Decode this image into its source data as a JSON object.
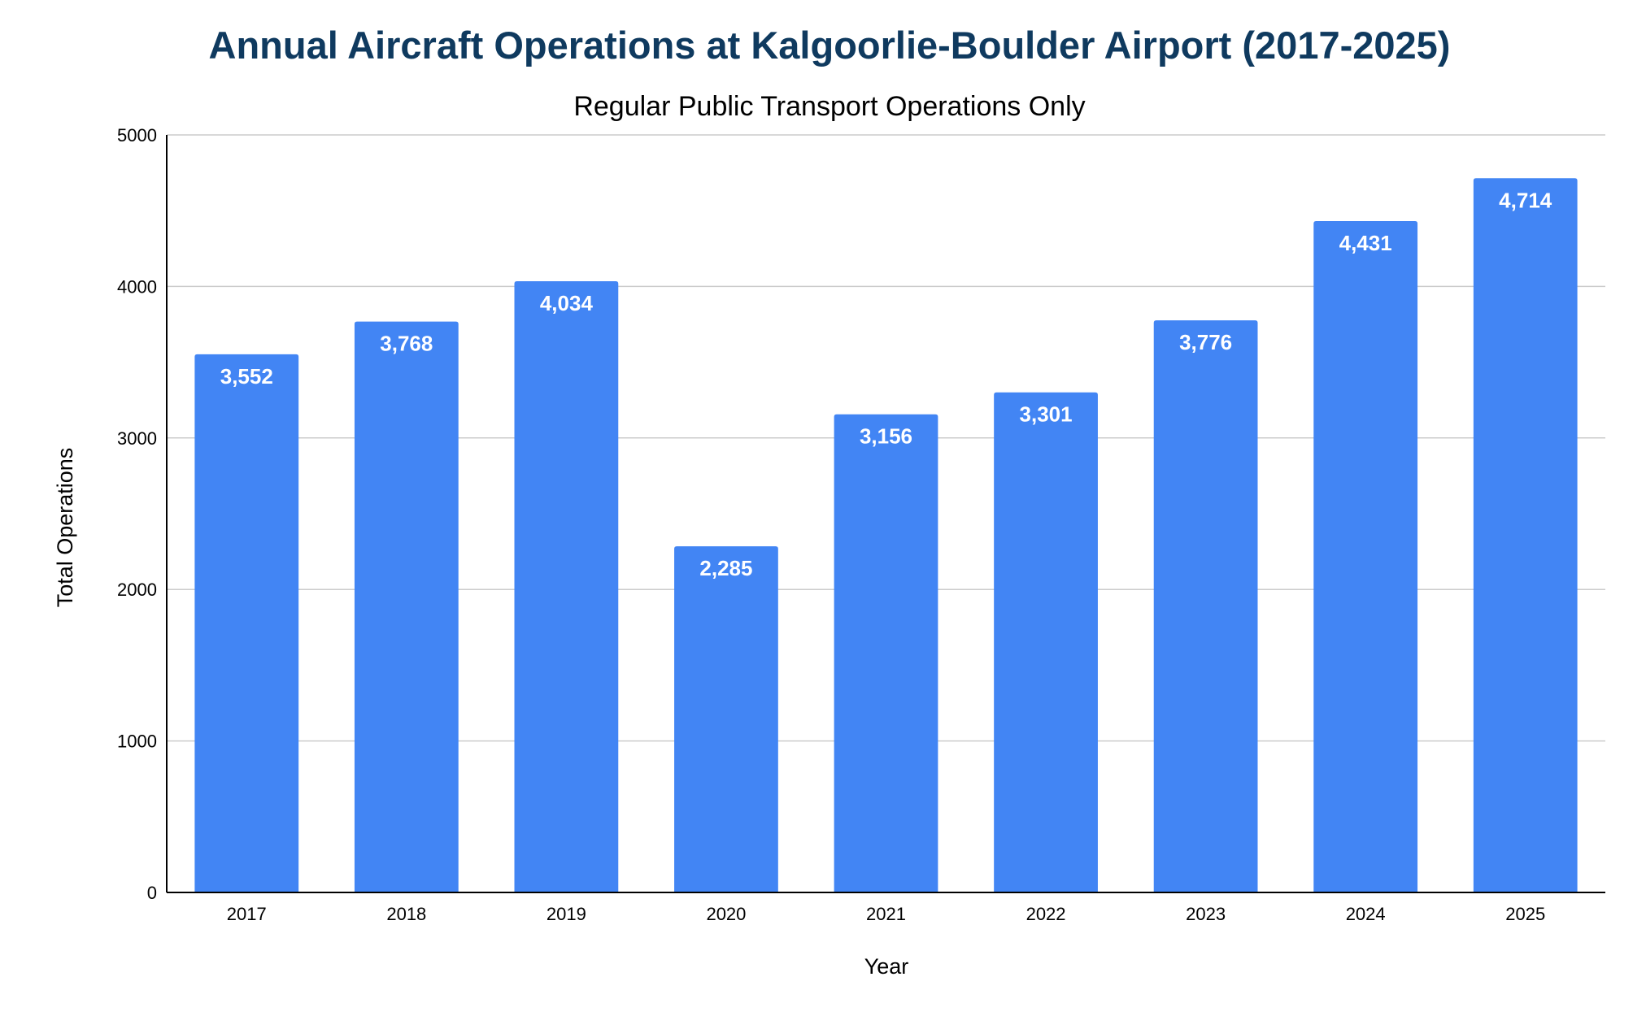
{
  "chart_data": {
    "type": "bar",
    "title": "Annual Aircraft Operations at Kalgoorlie-Boulder Airport (2017-2025)",
    "subtitle": "Regular Public Transport Operations Only",
    "xlabel": "Year",
    "ylabel": "Total Operations",
    "categories": [
      "2017",
      "2018",
      "2019",
      "2020",
      "2021",
      "2022",
      "2023",
      "2024",
      "2025"
    ],
    "values": [
      3552,
      3768,
      4034,
      2285,
      3156,
      3301,
      3776,
      4431,
      4714
    ],
    "data_labels": [
      "3,552",
      "3,768",
      "4,034",
      "2,285",
      "3,156",
      "3,301",
      "3,776",
      "4,431",
      "4,714"
    ],
    "ylim": [
      0,
      5000
    ],
    "yticks": [
      0,
      1000,
      2000,
      3000,
      4000,
      5000
    ],
    "grid": true,
    "legend": "none",
    "colors": {
      "bar": "#4285f4",
      "title": "#0f3a5f",
      "gridline": "#cccccc",
      "axis": "#000000",
      "data_label": "#ffffff"
    }
  }
}
